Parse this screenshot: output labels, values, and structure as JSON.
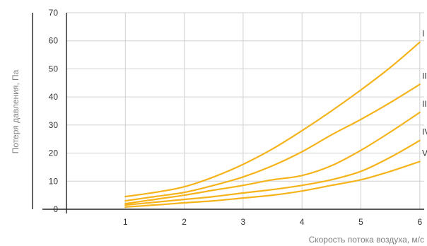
{
  "chart_data": {
    "type": "line",
    "title": "",
    "xlabel": "Скорость потока воздуха, м/с",
    "ylabel": "Потеря давления, Па",
    "xlim": [
      0,
      6
    ],
    "ylim": [
      0,
      70
    ],
    "xticks": [
      "1",
      "2",
      "3",
      "4",
      "5",
      "6"
    ],
    "yticks": [
      "0",
      "10",
      "20",
      "30",
      "40",
      "50",
      "60",
      "70"
    ],
    "grid": true,
    "line_color": "#F5B31C",
    "series": [
      {
        "name": "I",
        "x": [
          1,
          1.5,
          2,
          2.5,
          3,
          3.5,
          4,
          4.5,
          5,
          5.5,
          6
        ],
        "y": [
          4.5,
          6,
          8,
          11.5,
          16,
          21.5,
          28,
          35,
          42.5,
          50.5,
          59.5
        ]
      },
      {
        "name": "II",
        "x": [
          1,
          1.5,
          2,
          2.5,
          3,
          3.5,
          4,
          4.5,
          5,
          5.5,
          6
        ],
        "y": [
          3,
          4.5,
          6,
          8.5,
          11.5,
          15.5,
          20.5,
          26.5,
          32,
          38,
          44.5
        ]
      },
      {
        "name": "III",
        "x": [
          1,
          1.5,
          2,
          2.5,
          3,
          3.5,
          4,
          4.5,
          5,
          5.5,
          6
        ],
        "y": [
          2,
          3.5,
          5,
          6.8,
          8.5,
          10.5,
          12,
          15.5,
          21,
          27.5,
          34.5
        ]
      },
      {
        "name": "IV",
        "x": [
          1,
          1.5,
          2,
          2.5,
          3,
          3.5,
          4,
          4.5,
          5,
          5.5,
          6
        ],
        "y": [
          1.5,
          2.5,
          3.5,
          4.5,
          5.8,
          7,
          8.5,
          10.5,
          13.5,
          18.5,
          24.5
        ]
      },
      {
        "name": "V",
        "x": [
          1,
          1.5,
          2,
          2.5,
          3,
          3.5,
          4,
          4.5,
          5,
          5.5,
          6
        ],
        "y": [
          0.8,
          1.5,
          2.3,
          3,
          4,
          5,
          6.5,
          8.5,
          10.5,
          13.5,
          17
        ]
      }
    ]
  }
}
